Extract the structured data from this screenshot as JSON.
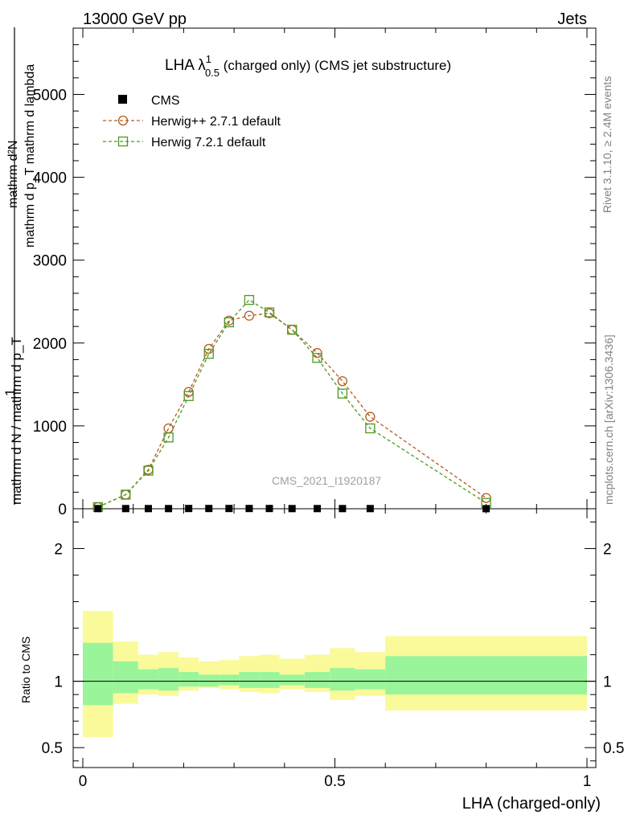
{
  "header": {
    "energy_label": "13000 GeV pp",
    "category_label": "Jets"
  },
  "side": {
    "rivet_label": "Rivet 3.1.10, ≥ 2.4M events",
    "source_label": "mcplots.cern.ch [arXiv:1306.3436]"
  },
  "plot_title": {
    "main": "LHA λ",
    "superscript": "1",
    "subscript": "0.5",
    "suffix": " (charged only) (CMS jet substructure)"
  },
  "watermark": "CMS_2021_I1920187",
  "ylabel": {
    "line1": "mathrm d²N",
    "line2": "mathrm d p_T mathrm d lambda",
    "prefix": "1",
    "line3": "mathrm d N / mathrm d p_T"
  },
  "ratio_ylabel": "Ratio to CMS",
  "xlabel": "LHA (charged-only)",
  "legend": [
    {
      "name": "CMS",
      "color": "#000000",
      "marker": "square-filled"
    },
    {
      "name": "Herwig++ 2.7.1 default",
      "color": "#b35a1f",
      "marker": "circle-open"
    },
    {
      "name": "Herwig 7.2.1 default",
      "color": "#4a9a1f",
      "marker": "square-open"
    }
  ],
  "chart_data": {
    "type": "line",
    "title": "LHA λ^1_0.5 (charged only) (CMS jet substructure)",
    "xlabel": "LHA (charged-only)",
    "xlim": [
      0,
      1
    ],
    "main_ylim": [
      0,
      5800
    ],
    "main_yticks": [
      0,
      1000,
      2000,
      3000,
      4000,
      5000
    ],
    "ratio_ylim": [
      0.35,
      2.3
    ],
    "ratio_yticks": [
      0.5,
      1,
      2
    ],
    "xticks": [
      0,
      0.5,
      1
    ],
    "xtick_labels": [
      "0",
      "0.5",
      "1"
    ],
    "main_ytick_labels": [
      "0",
      "1000",
      "2000",
      "3000",
      "4000",
      "5000"
    ],
    "ratio_ytick_labels": [
      "0.5",
      "1",
      "2"
    ],
    "x": [
      0.03,
      0.085,
      0.13,
      0.17,
      0.21,
      0.25,
      0.29,
      0.33,
      0.37,
      0.415,
      0.465,
      0.515,
      0.57,
      0.8
    ],
    "series": [
      {
        "name": "CMS",
        "color": "#000000",
        "values": [
          2,
          2,
          2,
          2,
          3,
          3,
          3,
          3,
          3,
          2,
          2,
          2,
          2,
          1
        ]
      },
      {
        "name": "Herwig++ 2.7.1 default",
        "color": "#b35a1f",
        "values": [
          20,
          170,
          470,
          970,
          1410,
          1930,
          2270,
          2330,
          2360,
          2160,
          1880,
          1540,
          1110,
          130
        ]
      },
      {
        "name": "Herwig 7.2.1 default",
        "color": "#4a9a1f",
        "values": [
          20,
          170,
          460,
          860,
          1360,
          1870,
          2250,
          2520,
          2370,
          2160,
          1820,
          1390,
          970,
          70
        ]
      }
    ],
    "ratio_bands": {
      "edges": [
        0,
        0.06,
        0.11,
        0.15,
        0.19,
        0.23,
        0.27,
        0.31,
        0.35,
        0.39,
        0.44,
        0.49,
        0.54,
        0.6,
        1.0
      ],
      "stat_low": [
        0.82,
        0.91,
        0.94,
        0.93,
        0.96,
        0.96,
        0.97,
        0.95,
        0.95,
        0.97,
        0.95,
        0.93,
        0.94,
        0.9
      ],
      "stat_high": [
        1.29,
        1.15,
        1.09,
        1.1,
        1.07,
        1.05,
        1.05,
        1.07,
        1.07,
        1.05,
        1.07,
        1.1,
        1.09,
        1.19
      ],
      "tot_low": [
        0.58,
        0.83,
        0.9,
        0.89,
        0.93,
        0.95,
        0.94,
        0.92,
        0.91,
        0.94,
        0.92,
        0.86,
        0.89,
        0.78
      ],
      "tot_high": [
        1.53,
        1.3,
        1.2,
        1.22,
        1.18,
        1.15,
        1.16,
        1.19,
        1.2,
        1.17,
        1.2,
        1.25,
        1.22,
        1.34
      ],
      "stat_color": "#9af59a",
      "tot_color": "#fafa9a"
    }
  }
}
